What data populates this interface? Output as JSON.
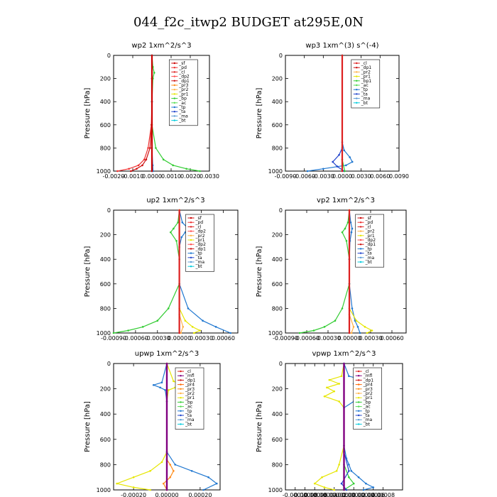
{
  "figure": {
    "title": "044_f2c_itwp2  BUDGET at295E,0N"
  },
  "colors": {
    "sf": "#cc0000",
    "pd": "#ee3030",
    "cl": "#dd2020",
    "dp2": "#ff4d4d",
    "dp1": "#cc1010",
    "pr3": "#ff8c1a",
    "pr2": "#ffb347",
    "pr1": "#e6e600",
    "pr4": "#ff6600",
    "bp": "#33cc33",
    "bp1": "#33cc33",
    "ac": "#55dd55",
    "tp": "#1f77d0",
    "ta": "#2244cc",
    "ma": "#5b9bd5",
    "bt": "#00ccdd",
    "mfl": "#800080"
  },
  "chart_data": [
    {
      "type": "line",
      "panel": "wp2",
      "title": "wp2   1xm^2/s^3",
      "ylabel": "Pressure [hPa]",
      "xlim": [
        -0.002,
        0.003
      ],
      "ylim": [
        1000,
        0
      ],
      "xticks": [
        "-0.0020",
        "-0.0010",
        "0.0000",
        "0.0010",
        "0.0020",
        "0.0030"
      ],
      "xtick_values": [
        -0.002,
        -0.001,
        0,
        0.001,
        0.002,
        0.003
      ],
      "yticks": [
        "0",
        "200",
        "400",
        "600",
        "800",
        "1000"
      ],
      "ytick_values": [
        0,
        200,
        400,
        600,
        800,
        1000
      ],
      "legend": [
        "_sf",
        "_pd",
        "_cl",
        "_dp2",
        "_dp1",
        "_pr3",
        "_pr2",
        "_pr1",
        "_bp",
        "_ac",
        "_tp",
        "_ta",
        "_ma",
        "_bt"
      ],
      "series": [
        {
          "name": "_pd",
          "color": "pd",
          "y": [
            0,
            200,
            400,
            600,
            800,
            900,
            950,
            980,
            1000
          ],
          "x": [
            0,
            0,
            0,
            -3e-05,
            -0.0002,
            -0.0004,
            -0.0007,
            -0.0012,
            -0.0018
          ]
        },
        {
          "name": "_dp1",
          "color": "dp1",
          "y": [
            0,
            200,
            400,
            600,
            800,
            900,
            950,
            980,
            1000
          ],
          "x": [
            0,
            0,
            0,
            -2e-05,
            -0.0001,
            -0.0003,
            -0.0005,
            -0.0008,
            -0.0011
          ]
        },
        {
          "name": "_bp",
          "color": "bp",
          "y": [
            0,
            100,
            150,
            200,
            400,
            600,
            800,
            900,
            950,
            980,
            1000
          ],
          "x": [
            0,
            5e-05,
            0.00012,
            5e-05,
            0,
            0,
            0.0002,
            0.0006,
            0.0011,
            0.0018,
            0.0025
          ]
        },
        {
          "name": "_tp",
          "color": "tp",
          "y": [
            0,
            400,
            800,
            950,
            1000
          ],
          "x": [
            0,
            0,
            0,
            4e-05,
            6e-05
          ]
        },
        {
          "name": "_bt",
          "color": "bt",
          "y": [
            0,
            1000
          ],
          "x": [
            0,
            0
          ]
        },
        {
          "name": "_sf",
          "color": "sf",
          "y": [
            0,
            1000
          ],
          "x": [
            0,
            0
          ],
          "width": 2.2
        }
      ]
    },
    {
      "type": "line",
      "panel": "wp3",
      "title": "wp3   1xm^(3) s^(-4)",
      "ylabel": "Pressure [hPa]",
      "xlim": [
        -0.009,
        0.009
      ],
      "ylim": [
        1000,
        0
      ],
      "xticks": [
        "-0.0090",
        "-0.0060",
        "-0.0030",
        "0.0000",
        "0.0030",
        "0.0060",
        "0.0090"
      ],
      "xtick_values": [
        -0.009,
        -0.006,
        -0.003,
        0,
        0.003,
        0.006,
        0.009
      ],
      "yticks": [
        "0",
        "200",
        "400",
        "600",
        "800",
        "1000"
      ],
      "ytick_values": [
        0,
        200,
        400,
        600,
        800,
        1000
      ],
      "legend": [
        "_cl",
        "_dp1",
        "_pr2",
        "_pr1",
        "_bp1",
        "_ac",
        "_tp",
        "_ta",
        "_ma",
        "_bt"
      ],
      "series": [
        {
          "name": "_tp",
          "color": "tp",
          "y": [
            0,
            750,
            820,
            880,
            920,
            950,
            980,
            1000
          ],
          "x": [
            0,
            0,
            0.0003,
            0.0012,
            0.0016,
            0.0006,
            -0.003,
            -0.0055
          ]
        },
        {
          "name": "_ta",
          "color": "ta",
          "y": [
            0,
            800,
            860,
            920,
            960,
            1000
          ],
          "x": [
            0,
            0,
            -0.0005,
            -0.0015,
            -0.0008,
            0.0003
          ]
        },
        {
          "name": "_bp1",
          "color": "bp1",
          "y": [
            0,
            900,
            1000
          ],
          "x": [
            0,
            0,
            0.0004
          ]
        },
        {
          "name": "_cl",
          "color": "cl",
          "y": [
            0,
            1000
          ],
          "x": [
            0,
            0
          ],
          "width": 2.2
        }
      ]
    },
    {
      "type": "line",
      "panel": "up2",
      "title": "up2   1xm^2/s^3",
      "ylabel": "Pressure [hPa]",
      "xlim": [
        -0.0009,
        0.0008
      ],
      "ylim": [
        1000,
        0
      ],
      "xticks": [
        "-0.00090",
        "-0.00060",
        "-0.00030",
        "0.00000",
        "0.00030",
        "0.00060"
      ],
      "xtick_values": [
        -0.0009,
        -0.0006,
        -0.0003,
        0,
        0.0003,
        0.0006
      ],
      "yticks": [
        "0",
        "200",
        "400",
        "600",
        "800",
        "1000"
      ],
      "ytick_values": [
        0,
        200,
        400,
        600,
        800,
        1000
      ],
      "legend": [
        "_sf",
        "_pd",
        "_cl",
        "_dp2",
        "_pr2",
        "_pr1",
        "_dp2",
        "_dp1",
        "_tp",
        "_ta",
        "_ma",
        "_bt"
      ],
      "series": [
        {
          "name": "_dp1",
          "color": "bp",
          "y": [
            0,
            100,
            150,
            180,
            250,
            400,
            600,
            800,
            900,
            950,
            980,
            1000
          ],
          "x": [
            0,
            -2e-05,
            -8e-05,
            -0.00012,
            -4e-05,
            0,
            0,
            -0.00015,
            -0.0003,
            -0.0005,
            -0.0007,
            -0.0009
          ]
        },
        {
          "name": "_tp",
          "color": "tp",
          "y": [
            0,
            100,
            150,
            180,
            220,
            300,
            600,
            800,
            900,
            950,
            1000
          ],
          "x": [
            0,
            4e-05,
            0.00012,
            8e-05,
            3e-05,
            0,
            0,
            0.00012,
            0.00032,
            0.0005,
            0.0007
          ]
        },
        {
          "name": "_pr1",
          "color": "pr1",
          "y": [
            0,
            800,
            900,
            950,
            980,
            1000
          ],
          "x": [
            0,
            0,
            8e-05,
            0.00018,
            0.00028,
            0.0002
          ]
        },
        {
          "name": "_pr2",
          "color": "pr2",
          "y": [
            0,
            850,
            950,
            1000
          ],
          "x": [
            0,
            0,
            5e-05,
            2e-05
          ]
        },
        {
          "name": "_cl",
          "color": "cl",
          "y": [
            0,
            1000
          ],
          "x": [
            0,
            0
          ],
          "width": 2.2
        }
      ]
    },
    {
      "type": "line",
      "panel": "vp2",
      "title": "vp2   1xm^2/s^3",
      "ylabel": "Pressure [hPa]",
      "xlim": [
        -0.0009,
        0.0008
      ],
      "ylim": [
        1000,
        0
      ],
      "xticks": [
        "-0.00090",
        "-0.00060",
        "-0.00030",
        "0.00000",
        "0.00030",
        "0.00060"
      ],
      "xtick_values": [
        -0.0009,
        -0.0006,
        -0.0003,
        0,
        0.0003,
        0.0006
      ],
      "yticks": [
        "0",
        "200",
        "400",
        "600",
        "800",
        "1000"
      ],
      "ytick_values": [
        0,
        200,
        400,
        600,
        800,
        1000
      ],
      "legend": [
        "_sf",
        "_pd",
        "_cl",
        "_pr2",
        "_pr1",
        "_dp2",
        "_dp1",
        "_tp",
        "_ta",
        "_ma",
        "_bt"
      ],
      "series": [
        {
          "name": "_dp1",
          "color": "bp",
          "y": [
            0,
            100,
            150,
            180,
            250,
            400,
            600,
            800,
            900,
            950,
            980,
            1000
          ],
          "x": [
            0,
            -2e-05,
            -6e-05,
            -0.0001,
            -4e-05,
            0,
            0,
            -0.0001,
            -0.0002,
            -0.00035,
            -0.0005,
            -0.0007
          ]
        },
        {
          "name": "_tp",
          "color": "tp",
          "y": [
            0,
            100,
            150,
            180,
            250,
            400,
            600,
            800,
            900,
            950,
            1000
          ],
          "x": [
            0,
            2e-05,
            4e-05,
            3e-05,
            1e-05,
            0,
            0,
            4e-05,
            8e-05,
            0.00012,
            0.00015
          ]
        },
        {
          "name": "_pr1",
          "color": "pr1",
          "y": [
            0,
            800,
            900,
            950,
            980,
            1000
          ],
          "x": [
            0,
            0,
            0.0001,
            0.00022,
            0.00032,
            0.00025
          ]
        },
        {
          "name": "_pr2",
          "color": "pr2",
          "y": [
            0,
            850,
            950,
            1000
          ],
          "x": [
            0,
            0,
            6e-05,
            3e-05
          ]
        },
        {
          "name": "_cl",
          "color": "cl",
          "y": [
            0,
            1000
          ],
          "x": [
            0,
            0
          ],
          "width": 2.2
        }
      ]
    },
    {
      "type": "line",
      "panel": "upwp",
      "title": "upwp   1xm^2/s^3",
      "ylabel": "Pressure [hPa]",
      "xlim": [
        -0.00032,
        0.00032
      ],
      "ylim": [
        1000,
        0
      ],
      "xticks": [
        "-0.00020",
        "0.00000",
        "0.00020"
      ],
      "xtick_values": [
        -0.0002,
        0,
        0.0002
      ],
      "yticks": [
        "0",
        "200",
        "400",
        "600",
        "800",
        "1000"
      ],
      "ytick_values": [
        0,
        200,
        400,
        600,
        800,
        1000
      ],
      "legend": [
        "_cl",
        "_mfl",
        "_dp1",
        "_pr4",
        "_pr3",
        "_pr2",
        "_pr1",
        "_bp",
        "_ac",
        "_tp",
        "_ta",
        "_ma",
        "_bt"
      ],
      "series": [
        {
          "name": "_pr1",
          "color": "pr1",
          "y": [
            0,
            140,
            170,
            190,
            210,
            300,
            700,
            780,
            850,
            900,
            950,
            980,
            1000
          ],
          "x": [
            0,
            4e-05,
            9e-05,
            5e-05,
            1e-05,
            0,
            0,
            -3e-05,
            -0.0001,
            -0.0002,
            -0.0003,
            -0.0002,
            -0.0001
          ]
        },
        {
          "name": "_tp",
          "color": "tp",
          "y": [
            0,
            150,
            170,
            190,
            210,
            300,
            700,
            800,
            850,
            900,
            950,
            1000
          ],
          "x": [
            0,
            -3e-05,
            -8e-05,
            -4e-05,
            -1e-05,
            0,
            0,
            5e-05,
            0.00015,
            0.00025,
            0.0003,
            0.00022
          ]
        },
        {
          "name": "_pr3",
          "color": "pr3",
          "y": [
            0,
            760,
            800,
            850,
            900,
            950,
            1000
          ],
          "x": [
            0,
            0,
            2e-05,
            4e-05,
            2e-05,
            -2e-05,
            0
          ]
        },
        {
          "name": "_mfl",
          "color": "mfl",
          "y": [
            0,
            1000
          ],
          "x": [
            0,
            0
          ],
          "width": 2.4
        }
      ]
    },
    {
      "type": "line",
      "panel": "vpwp",
      "title": "vpwp   1xm^2/s^3",
      "ylabel": "Pressure [hPa]",
      "xlim": [
        -0.00012,
        0.00012
      ],
      "ylim": [
        1000,
        0
      ],
      "xticks": [
        "-0.00010",
        "-0.00008",
        "-0.00006",
        "-0.00004",
        "-0.00002",
        "0.00000",
        "0.00002",
        "0.00004",
        "0.00006",
        "0.00008"
      ],
      "xtick_values": [
        -0.0001,
        -8e-05,
        -6e-05,
        -4e-05,
        -2e-05,
        0,
        2e-05,
        4e-05,
        6e-05,
        8e-05
      ],
      "yticks": [
        "0",
        "200",
        "400",
        "600",
        "800",
        "1000"
      ],
      "ytick_values": [
        0,
        200,
        400,
        600,
        800,
        1000
      ],
      "legend": [
        "_cl",
        "_mfl",
        "_dp1",
        "_pr4",
        "_pr3",
        "_pr2",
        "_pr1",
        "_bp",
        "_ac",
        "_tp",
        "_ta",
        "_ma",
        "_bt"
      ],
      "series": [
        {
          "name": "_pr1",
          "color": "pr1",
          "y": [
            0,
            100,
            130,
            160,
            190,
            220,
            260,
            300,
            350,
            650,
            800,
            850,
            900,
            950,
            980,
            1000
          ],
          "x": [
            0,
            -5e-06,
            -3e-05,
            -1e-05,
            -3.5e-05,
            -2e-05,
            -4e-05,
            -1e-05,
            0,
            0,
            -1e-05,
            -1.5e-05,
            -4.5e-05,
            -6e-05,
            -4e-05,
            -2e-05
          ]
        },
        {
          "name": "_tp",
          "color": "tp",
          "y": [
            0,
            100,
            130,
            160,
            190,
            220,
            260,
            300,
            350,
            650,
            750,
            800,
            850,
            900,
            950,
            980,
            1000
          ],
          "x": [
            0,
            1e-05,
            4e-05,
            2e-05,
            5e-05,
            3e-05,
            4e-05,
            2e-05,
            0,
            0,
            5e-06,
            1e-05,
            1.5e-05,
            3e-05,
            4.5e-05,
            6e-05,
            4e-05
          ]
        },
        {
          "name": "_bp",
          "color": "bp",
          "y": [
            0,
            800,
            900,
            950,
            1000
          ],
          "x": [
            0,
            0,
            1e-05,
            2e-05,
            0
          ]
        },
        {
          "name": "_ta",
          "color": "ta",
          "y": [
            0,
            700,
            850,
            950,
            1000
          ],
          "x": [
            0,
            0,
            1e-05,
            -5e-06,
            5e-06
          ]
        },
        {
          "name": "_mfl",
          "color": "mfl",
          "y": [
            0,
            1000
          ],
          "x": [
            0,
            0
          ],
          "width": 2.4
        }
      ]
    }
  ]
}
